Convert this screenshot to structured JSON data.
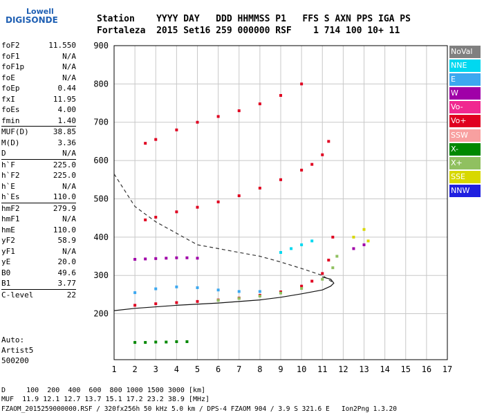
{
  "logo": {
    "line1": "Lowell",
    "line2": "DIGISONDE"
  },
  "header": {
    "row1": "Station    YYYY DAY   DDD HHMMSS P1   FFS S AXN PPS IGA PS",
    "row2": "Fortaleza  2015 Set16 259 000000 RSF    1 714 100 10+ 11"
  },
  "params": [
    {
      "name": "foF2",
      "value": "11.550"
    },
    {
      "name": "foF1",
      "value": "N/A"
    },
    {
      "name": "foF1p",
      "value": "N/A"
    },
    {
      "name": "foE",
      "value": "N/A"
    },
    {
      "name": "foEp",
      "value": "0.44"
    },
    {
      "name": "fxI",
      "value": "11.95"
    },
    {
      "name": "foEs",
      "value": "4.00"
    },
    {
      "name": "fmin",
      "value": "1.40"
    },
    {
      "name": "MUF(D)",
      "value": "38.85",
      "sep": true
    },
    {
      "name": "M(D)",
      "value": "3.36"
    },
    {
      "name": "D",
      "value": "N/A"
    },
    {
      "name": "h`F",
      "value": "225.0",
      "sep": true
    },
    {
      "name": "h`F2",
      "value": "225.0"
    },
    {
      "name": "h`E",
      "value": "N/A"
    },
    {
      "name": "h`Es",
      "value": "110.0"
    },
    {
      "name": "hmF2",
      "value": "279.9",
      "sep": true
    },
    {
      "name": "hmF1",
      "value": "N/A"
    },
    {
      "name": "hmE",
      "value": "110.0"
    },
    {
      "name": "yF2",
      "value": "58.9"
    },
    {
      "name": "yF1",
      "value": "N/A"
    },
    {
      "name": "yE",
      "value": "20.0"
    },
    {
      "name": "B0",
      "value": "49.6"
    },
    {
      "name": "B1",
      "value": "3.77"
    },
    {
      "name": "C-level",
      "value": "22",
      "sep": true
    }
  ],
  "auto": {
    "line1": "Auto:",
    "line2": "Artist5",
    "line3": "500200"
  },
  "legend": [
    {
      "label": "NoVal",
      "color": "#808080"
    },
    {
      "label": "NNE",
      "color": "#00d8f0"
    },
    {
      "label": "E",
      "color": "#3ca8f0"
    },
    {
      "label": "W",
      "color": "#a000a8"
    },
    {
      "label": "Vo-",
      "color": "#f02890"
    },
    {
      "label": "Vo+",
      "color": "#e00020"
    },
    {
      "label": "SSW",
      "color": "#f8a0a0"
    },
    {
      "label": "X-",
      "color": "#008800"
    },
    {
      "label": "X+",
      "color": "#90c060"
    },
    {
      "label": "SSE",
      "color": "#d8d800"
    },
    {
      "label": "NNW",
      "color": "#2020e0"
    }
  ],
  "footer": {
    "line1": "D     100  200  400  600  800 1000 1500 3000 [km]",
    "line2": "MUF  11.9 12.1 12.7 13.7 15.1 17.2 23.2 38.9 [MHz]",
    "line3": "FZAOM_2015259000000.RSF / 320fx256h 50 kHz 5.0 km / DPS-4 FZAOM 904 / 3.9 S 321.6 E   Ion2Png 1.3.20"
  },
  "chart_data": {
    "type": "scatter",
    "xlim": [
      1,
      17
    ],
    "ylim": [
      80,
      900
    ],
    "xticks": [
      "1",
      "2",
      "3",
      "4",
      "5",
      "6",
      "7",
      "8",
      "9",
      "10",
      "11",
      "12",
      "13",
      "14",
      "15",
      "16",
      "17"
    ],
    "yticks": [
      "200",
      "300",
      "400",
      "500",
      "600",
      "700",
      "800",
      "900"
    ],
    "grid": true,
    "series": [
      {
        "name": "Vo+",
        "color": "#e00020",
        "x": [
          2.0,
          3.0,
          4.0,
          5.0,
          6.0,
          7.0,
          8.0,
          9.0,
          10.0,
          10.5,
          11.0,
          11.3,
          11.5
        ],
        "y": [
          222,
          226,
          229,
          232,
          236,
          241,
          248,
          257,
          272,
          285,
          305,
          340,
          400
        ]
      },
      {
        "name": "Vo+",
        "color": "#e00020",
        "x": [
          2.5,
          3.0,
          4.0,
          5.0,
          6.0,
          7.0,
          8.0,
          9.0,
          10.0,
          10.5,
          11.0,
          11.3
        ],
        "y": [
          445,
          452,
          466,
          478,
          492,
          508,
          528,
          550,
          575,
          590,
          615,
          650
        ]
      },
      {
        "name": "Vo+",
        "color": "#e00020",
        "x": [
          2.5,
          3.0,
          4.0,
          5.0,
          6.0,
          7.0,
          8.0,
          9.0,
          10.0
        ],
        "y": [
          645,
          655,
          680,
          700,
          715,
          730,
          748,
          770,
          800
        ]
      },
      {
        "name": "X+",
        "color": "#90c060",
        "x": [
          6.0,
          7.0,
          8.0,
          9.0,
          10.0,
          11.0,
          11.5,
          11.7
        ],
        "y": [
          235,
          240,
          246,
          254,
          266,
          290,
          320,
          350
        ]
      },
      {
        "name": "E",
        "color": "#3ca8f0",
        "x": [
          2.0,
          3.0,
          4.0,
          5.0,
          6.0,
          7.0,
          8.0
        ],
        "y": [
          255,
          265,
          270,
          268,
          262,
          258,
          258
        ]
      },
      {
        "name": "W",
        "color": "#a000a8",
        "x": [
          2.0,
          2.5,
          3.0,
          3.5,
          4.0,
          4.5,
          5.0,
          12.5,
          13.0
        ],
        "y": [
          342,
          343,
          344,
          345,
          346,
          346,
          345,
          370,
          380
        ]
      },
      {
        "name": "NNE",
        "color": "#00d8f0",
        "x": [
          9.0,
          9.5,
          10.0,
          10.5
        ],
        "y": [
          360,
          370,
          380,
          390
        ]
      },
      {
        "name": "X-",
        "color": "#008800",
        "x": [
          2.0,
          2.5,
          3.0,
          3.5,
          4.0,
          4.5
        ],
        "y": [
          125,
          125,
          126,
          126,
          127,
          127
        ]
      },
      {
        "name": "SSE",
        "color": "#d8d800",
        "x": [
          12.5,
          13.0,
          13.2
        ],
        "y": [
          400,
          420,
          390
        ]
      }
    ],
    "profile_solid": {
      "x": [
        1.0,
        2.0,
        4.0,
        6.0,
        8.0,
        9.0,
        10.0,
        11.0,
        11.4,
        11.55,
        11.4,
        11.0
      ],
      "y": [
        208,
        214,
        222,
        228,
        236,
        243,
        252,
        262,
        272,
        280,
        290,
        296
      ]
    },
    "profile_dashed": {
      "x": [
        1.0,
        2.0,
        3.0,
        4.0,
        5.0,
        6.0,
        7.0,
        8.0,
        9.0,
        10.0,
        11.0,
        11.55
      ],
      "y": [
        565,
        480,
        440,
        410,
        380,
        370,
        360,
        350,
        335,
        318,
        300,
        280
      ]
    }
  }
}
